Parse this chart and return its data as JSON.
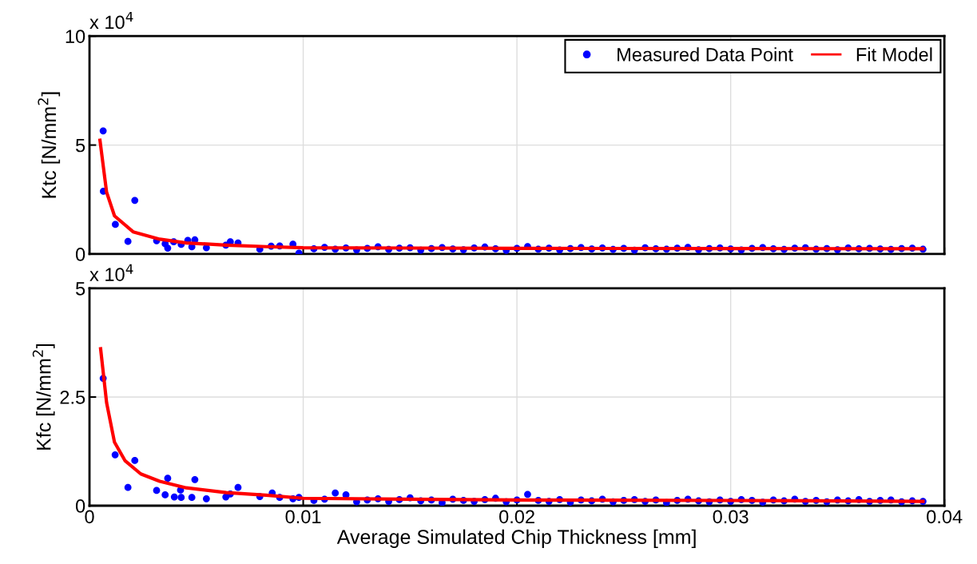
{
  "chart_data": [
    {
      "type": "scatter",
      "ylabel": "Ktc [N/mm$^{2}$]",
      "annotations": [
        "x 10$^{4}$"
      ],
      "xlim": [
        0,
        0.04
      ],
      "xticks": [
        0,
        0.01,
        0.02,
        0.03,
        0.04
      ],
      "ylim": [
        0,
        10
      ],
      "yticks": [
        0,
        5,
        10
      ],
      "tick_labels": "y",
      "grid": true,
      "legend": "top right",
      "marker": "circle",
      "series": [
        {
          "name": "Measured Data Point",
          "color": "#0000ff",
          "x": [
            0.00064,
            0.00065,
            0.00121,
            0.00212,
            0.0018,
            0.00314,
            0.00354,
            0.00366,
            0.00394,
            0.00429,
            0.0046,
            0.00479,
            0.00493,
            0.00547,
            0.00638,
            0.00659,
            0.00695,
            0.00797,
            0.0085,
            0.0089,
            0.00952,
            0.0098,
            0.0105,
            0.011,
            0.0115,
            0.012,
            0.0125,
            0.013,
            0.0135,
            0.014,
            0.0145,
            0.015,
            0.0155,
            0.016,
            0.0165,
            0.017,
            0.0175,
            0.018,
            0.0185,
            0.019,
            0.0195,
            0.02,
            0.0205,
            0.021,
            0.0215,
            0.022,
            0.0225,
            0.023,
            0.0235,
            0.024,
            0.0245,
            0.025,
            0.0255,
            0.026,
            0.0265,
            0.027,
            0.0275,
            0.028,
            0.0285,
            0.029,
            0.0295,
            0.03,
            0.0305,
            0.031,
            0.0315,
            0.032,
            0.0325,
            0.033,
            0.0335,
            0.034,
            0.0345,
            0.035,
            0.0355,
            0.036,
            0.0365,
            0.037,
            0.0375,
            0.038,
            0.0385,
            0.039
          ],
          "values": [
            5.65,
            2.88,
            1.36,
            2.46,
            0.58,
            0.61,
            0.47,
            0.27,
            0.56,
            0.44,
            0.63,
            0.33,
            0.65,
            0.29,
            0.41,
            0.56,
            0.51,
            0.22,
            0.36,
            0.37,
            0.45,
            0.04,
            0.24,
            0.31,
            0.22,
            0.28,
            0.19,
            0.26,
            0.33,
            0.21,
            0.27,
            0.29,
            0.18,
            0.25,
            0.3,
            0.23,
            0.2,
            0.28,
            0.32,
            0.24,
            0.17,
            0.26,
            0.34,
            0.22,
            0.27,
            0.19,
            0.25,
            0.3,
            0.23,
            0.28,
            0.21,
            0.26,
            0.18,
            0.29,
            0.24,
            0.22,
            0.27,
            0.31,
            0.2,
            0.25,
            0.28,
            0.23,
            0.19,
            0.26,
            0.3,
            0.24,
            0.21,
            0.27,
            0.29,
            0.22,
            0.25,
            0.2,
            0.28,
            0.24,
            0.26,
            0.23,
            0.21,
            0.25,
            0.27,
            0.22
          ]
        },
        {
          "name": "Fit Model",
          "type": "line",
          "marker": "none",
          "line_style": "solid",
          "color": "#ff0000",
          "x": [
            0.00049,
            0.0008,
            0.00117,
            0.00204,
            0.00329,
            0.00453,
            0.0064,
            0.00827,
            0.01,
            0.02,
            0.03,
            0.039
          ],
          "values": [
            5.22,
            2.84,
            1.75,
            1.02,
            0.68,
            0.51,
            0.41,
            0.34,
            0.29,
            0.26,
            0.25,
            0.24
          ]
        }
      ]
    },
    {
      "type": "scatter",
      "xlabel": "Average Simulated Chip Thickness [mm]",
      "ylabel": "Kfc [N/mm$^{2}$]",
      "annotations": [
        "x 10$^{4}$"
      ],
      "xlim": [
        0,
        0.04
      ],
      "xticks": [
        0,
        0.01,
        0.02,
        0.03,
        0.04
      ],
      "ylim": [
        0,
        5
      ],
      "yticks": [
        0,
        2.5,
        5
      ],
      "grid": true,
      "marker": "circle",
      "series": [
        {
          "color": "#0000ff",
          "x": [
            0.00064,
            0.0012,
            0.00212,
            0.0018,
            0.00314,
            0.00354,
            0.00366,
            0.00397,
            0.00426,
            0.00429,
            0.00479,
            0.00493,
            0.00547,
            0.00638,
            0.00659,
            0.00695,
            0.00797,
            0.00855,
            0.0089,
            0.00952,
            0.0098,
            0.0105,
            0.011,
            0.0115,
            0.012,
            0.0125,
            0.013,
            0.0135,
            0.014,
            0.0145,
            0.015,
            0.0155,
            0.016,
            0.0165,
            0.017,
            0.0175,
            0.018,
            0.0185,
            0.019,
            0.0195,
            0.02,
            0.0205,
            0.021,
            0.0215,
            0.022,
            0.0225,
            0.023,
            0.0235,
            0.024,
            0.0245,
            0.025,
            0.0255,
            0.026,
            0.0265,
            0.027,
            0.0275,
            0.028,
            0.0285,
            0.029,
            0.0295,
            0.03,
            0.0305,
            0.031,
            0.0315,
            0.032,
            0.0325,
            0.033,
            0.0335,
            0.034,
            0.0345,
            0.035,
            0.0355,
            0.036,
            0.0365,
            0.037,
            0.0375,
            0.038,
            0.0385,
            0.039
          ],
          "values": [
            2.93,
            1.17,
            1.04,
            0.42,
            0.35,
            0.25,
            0.63,
            0.2,
            0.36,
            0.19,
            0.19,
            0.6,
            0.16,
            0.2,
            0.27,
            0.42,
            0.21,
            0.29,
            0.19,
            0.16,
            0.19,
            0.12,
            0.15,
            0.29,
            0.25,
            0.09,
            0.13,
            0.16,
            0.1,
            0.14,
            0.18,
            0.11,
            0.13,
            0.07,
            0.15,
            0.12,
            0.1,
            0.14,
            0.17,
            0.09,
            0.13,
            0.26,
            0.12,
            0.1,
            0.14,
            0.08,
            0.13,
            0.11,
            0.15,
            0.09,
            0.12,
            0.14,
            0.1,
            0.13,
            0.07,
            0.12,
            0.15,
            0.11,
            0.09,
            0.13,
            0.1,
            0.14,
            0.12,
            0.08,
            0.13,
            0.11,
            0.15,
            0.1,
            0.12,
            0.09,
            0.13,
            0.11,
            0.14,
            0.1,
            0.12,
            0.13,
            0.09,
            0.11,
            0.1
          ]
        },
        {
          "type": "line",
          "marker": "none",
          "line_style": "solid",
          "color": "#ff0000",
          "x": [
            0.00052,
            0.0008,
            0.00117,
            0.00167,
            0.0024,
            0.00329,
            0.00453,
            0.0064,
            0.00827,
            0.01,
            0.02,
            0.03,
            0.039
          ],
          "values": [
            3.61,
            2.37,
            1.46,
            1.03,
            0.73,
            0.56,
            0.41,
            0.3,
            0.24,
            0.17,
            0.13,
            0.12,
            0.1
          ]
        }
      ]
    }
  ]
}
